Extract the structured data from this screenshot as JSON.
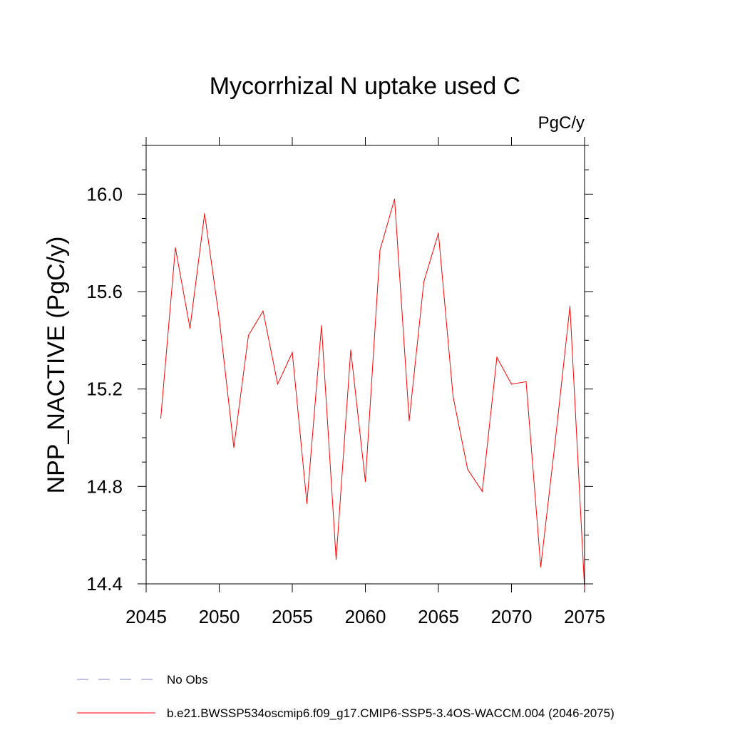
{
  "chart_data": {
    "type": "line",
    "title": "Mycorrhizal N uptake used C",
    "units": "PgC/y",
    "xlabel": "",
    "ylabel": "NPP_NACTIVE  (PgC/y)",
    "xlim": [
      2045,
      2075
    ],
    "ylim": [
      14.4,
      16.2
    ],
    "xticks": [
      2045,
      2050,
      2055,
      2060,
      2065,
      2070,
      2075
    ],
    "yticks": [
      14.4,
      14.8,
      15.2,
      15.6,
      16.0
    ],
    "ytick_labels": [
      "14.4",
      "14.8",
      "15.2",
      "15.6",
      "16.0"
    ],
    "series": [
      {
        "name": "b.e21.BWSSP534oscmip6.f09_g17.CMIP6-SSP5-3.4OS-WACCM.004 (2046-2075)",
        "color": "#ff0000",
        "x": [
          2046,
          2047,
          2048,
          2049,
          2050,
          2051,
          2052,
          2053,
          2054,
          2055,
          2056,
          2057,
          2058,
          2059,
          2060,
          2061,
          2062,
          2063,
          2064,
          2065,
          2066,
          2067,
          2068,
          2069,
          2070,
          2071,
          2072,
          2073,
          2074,
          2075
        ],
        "y": [
          15.08,
          15.78,
          15.45,
          15.92,
          15.49,
          14.96,
          15.42,
          15.52,
          15.22,
          15.35,
          14.73,
          15.46,
          14.5,
          15.36,
          14.82,
          15.77,
          15.98,
          15.07,
          15.64,
          15.84,
          15.17,
          14.87,
          14.78,
          15.33,
          15.22,
          15.23,
          14.47,
          14.99,
          15.54,
          14.38
        ]
      }
    ],
    "legend": [
      {
        "label": "No Obs",
        "color": "#8080c0",
        "style": "dashed"
      },
      {
        "label": "b.e21.BWSSP534oscmip6.f09_g17.CMIP6-SSP5-3.4OS-WACCM.004 (2046-2075)",
        "color": "#ff0000",
        "style": "solid"
      }
    ],
    "legend_position": "bottom-left"
  }
}
